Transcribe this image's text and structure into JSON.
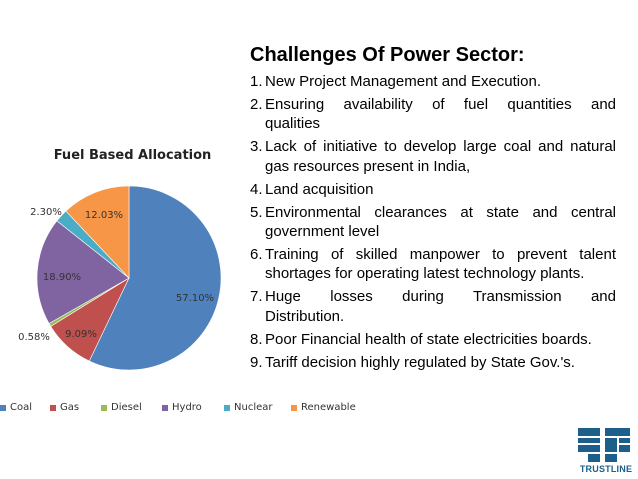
{
  "chart_data": {
    "type": "pie",
    "title": "Fuel Based Allocation",
    "categories": [
      "Coal",
      "Gas",
      "Diesel",
      "Hydro",
      "Nuclear",
      "Renewable"
    ],
    "values": [
      57.1,
      9.09,
      0.58,
      18.9,
      2.3,
      12.03
    ],
    "labels": [
      "57.10%",
      "9.09%",
      "0.58%",
      "18.90%",
      "2.30%",
      "12.03%"
    ],
    "colors": [
      "#4f81bd",
      "#c0504d",
      "#9bbb59",
      "#8064a2",
      "#4bacc6",
      "#f79646"
    ],
    "legend_position": "bottom"
  },
  "panel": {
    "title": "Challenges Of Power Sector:",
    "items": [
      {
        "num": "1.",
        "text": "New Project Management and Execution."
      },
      {
        "num": "2.",
        "text": "Ensuring availability of fuel quantities and",
        "tail": "qualities"
      },
      {
        "num": "3.",
        "text": "Lack of initiative to develop large coal and natural gas resources present in India,"
      },
      {
        "num": "4.",
        "text": "Land acquisition"
      },
      {
        "num": "5.",
        "text": "Environmental clearances at state and central government level"
      },
      {
        "num": "6.",
        "text": "Training of skilled manpower to prevent talent shortages for operating latest technology plants."
      },
      {
        "num": "7.",
        "text": "Huge losses during Transmission and",
        "tail": "Distribution."
      },
      {
        "num": "8.",
        "text": "Poor Financial health of state electricities boards."
      },
      {
        "num": "9.",
        "text": "Tariff  decision highly regulated by State Gov.'s."
      }
    ]
  },
  "logo": {
    "text": "TRUSTLINE",
    "color": "#1c5f8a"
  }
}
